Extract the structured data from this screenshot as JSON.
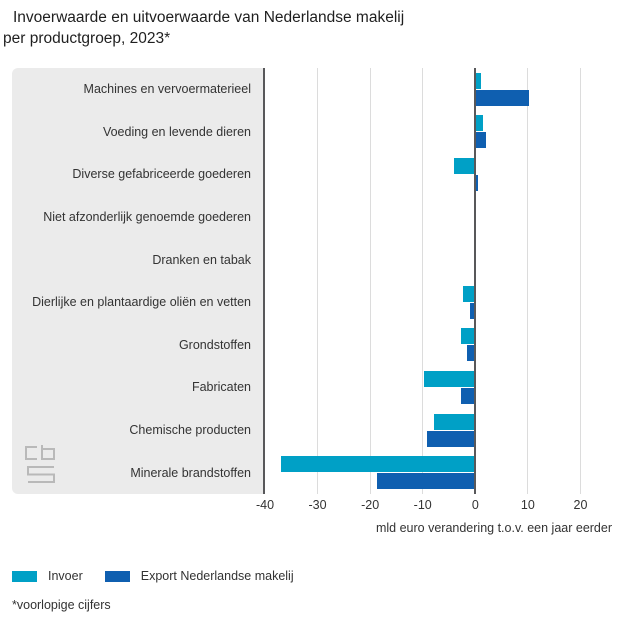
{
  "title": {
    "line1": "Invoerwaarde en uitvoerwaarde van Nederlandse makelij",
    "line2": "per productgroep, 2023*"
  },
  "chart_data": {
    "type": "bar",
    "orientation": "horizontal",
    "title": "Invoerwaarde en uitvoerwaarde van Nederlandse makelij per productgroep, 2023*",
    "categories": [
      "Machines en vervoermaterieel",
      "Voeding en levende dieren",
      "Diverse gefabriceerde goederen",
      "Niet afzonderlijk genoemde goederen",
      "Dranken en tabak",
      "Dierlijke en plantaardige oliën en vetten",
      "Grondstoffen",
      "Fabricaten",
      "Chemische producten",
      "Minerale brandstoffen"
    ],
    "series": [
      {
        "name": "Invoer",
        "color": "#00a0c6",
        "values": [
          1.0,
          1.4,
          -4.0,
          0,
          0,
          -2.4,
          -2.7,
          -9.7,
          -7.8,
          -37.0
        ]
      },
      {
        "name": "Export Nederlandse makelij",
        "color": "#0f5fb0",
        "values": [
          10.2,
          2.1,
          0.5,
          0,
          0,
          -1.0,
          -1.5,
          -2.7,
          -9.1,
          -18.7
        ]
      }
    ],
    "xlabel": "mld euro verandering t.o.v. een jaar eerder",
    "x_ticks": [
      -40,
      -30,
      -20,
      -10,
      0,
      10,
      20
    ],
    "xlim": [
      -40,
      26
    ],
    "grid": "vertical",
    "gridline_color": "#dcdcdc",
    "zero_line_color": "#58585a",
    "panel_color": "#ebebeb",
    "legend_position": "bottom-left"
  },
  "footnote": "*voorlopige cijfers",
  "logo": {
    "name": "CBS",
    "color": "#b9b9b9"
  }
}
